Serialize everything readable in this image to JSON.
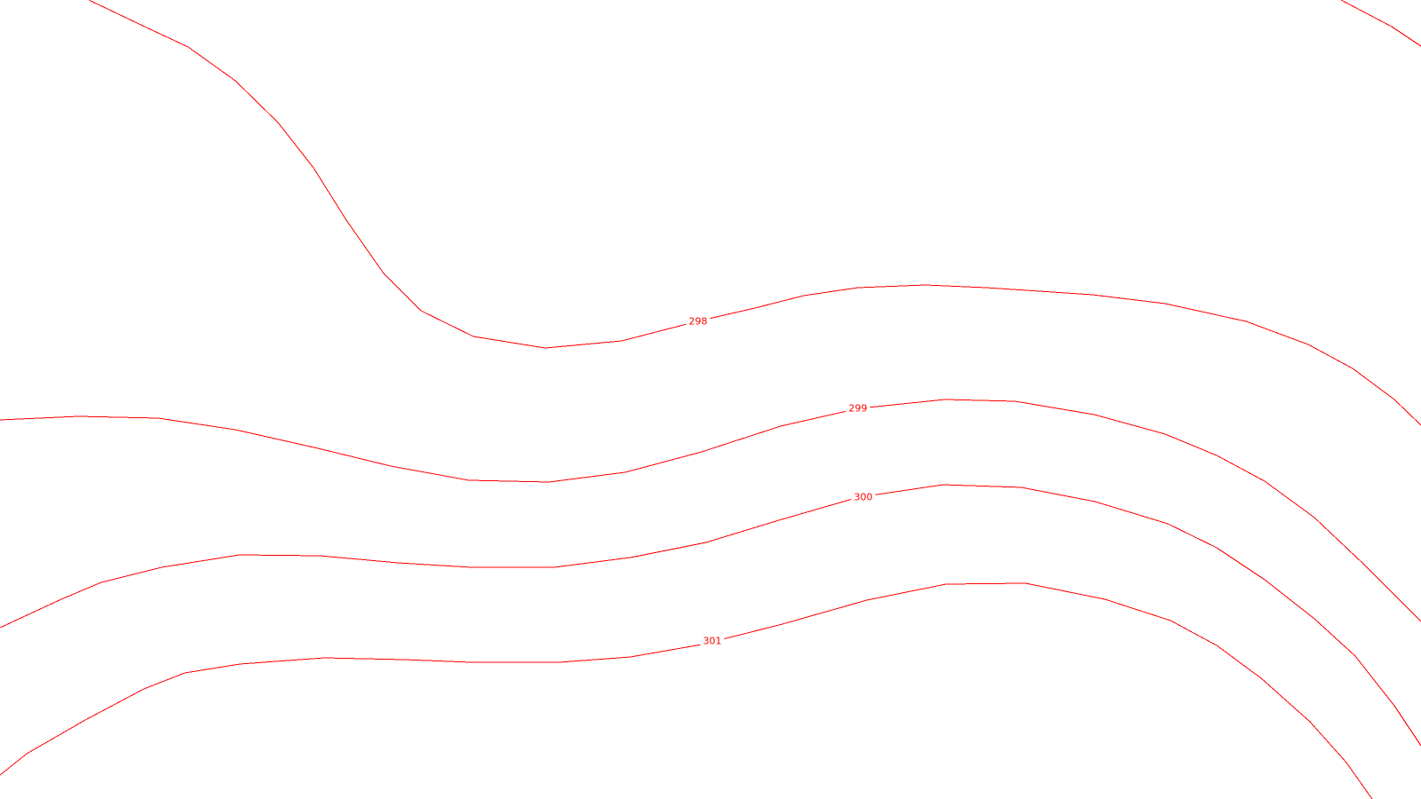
{
  "map": {
    "line_color": "#ff0000",
    "background_color": "#ffffff",
    "contours": [
      {
        "id": "top-right-fragment",
        "label": ""
      },
      {
        "id": "contour-298",
        "label": "298"
      },
      {
        "id": "contour-299",
        "label": "299"
      },
      {
        "id": "contour-300",
        "label": "300"
      },
      {
        "id": "contour-301",
        "label": "301"
      }
    ]
  }
}
